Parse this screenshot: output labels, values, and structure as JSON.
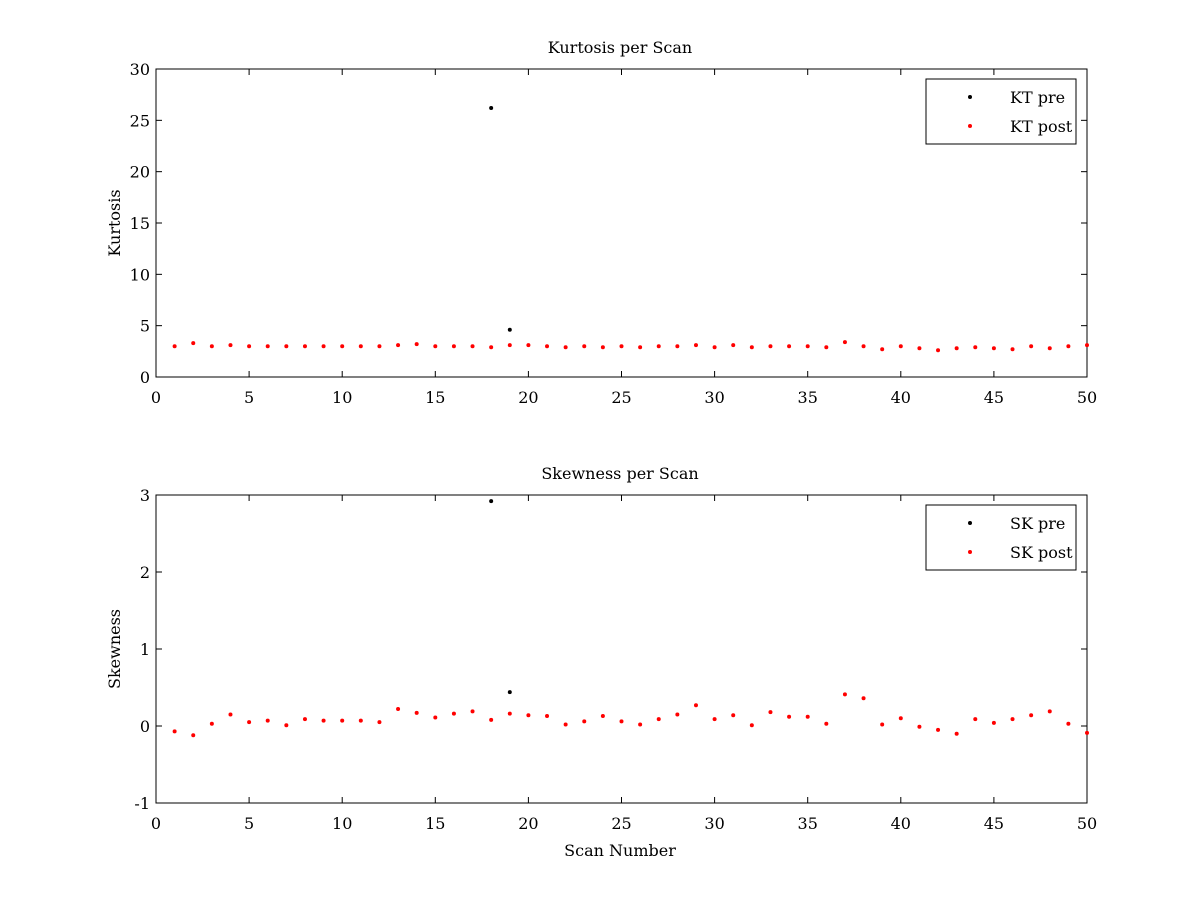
{
  "chart_data": [
    {
      "type": "scatter",
      "title": "Kurtosis per Scan",
      "xlabel": "",
      "ylabel": "Kurtosis",
      "xlim": [
        0,
        50
      ],
      "ylim": [
        0,
        30
      ],
      "xticks": [
        0,
        5,
        10,
        15,
        20,
        25,
        30,
        35,
        40,
        45,
        50
      ],
      "yticks": [
        0,
        5,
        10,
        15,
        20,
        25,
        30
      ],
      "grid": false,
      "legend_position": "top-right",
      "series": [
        {
          "name": "KT pre",
          "color": "#000000",
          "x": [
            18,
            19
          ],
          "y": [
            26.2,
            4.6
          ]
        },
        {
          "name": "KT post",
          "color": "#ff0000",
          "x": [
            1,
            2,
            3,
            4,
            5,
            6,
            7,
            8,
            9,
            10,
            11,
            12,
            13,
            14,
            15,
            16,
            17,
            18,
            19,
            20,
            21,
            22,
            23,
            24,
            25,
            26,
            27,
            28,
            29,
            30,
            31,
            32,
            33,
            34,
            35,
            36,
            37,
            38,
            39,
            40,
            41,
            42,
            43,
            44,
            45,
            46,
            47,
            48,
            49,
            50
          ],
          "y": [
            3.0,
            3.3,
            3.0,
            3.1,
            3.0,
            3.0,
            3.0,
            3.0,
            3.0,
            3.0,
            3.0,
            3.0,
            3.1,
            3.2,
            3.0,
            3.0,
            3.0,
            2.9,
            3.1,
            3.1,
            3.0,
            2.9,
            3.0,
            2.9,
            3.0,
            2.9,
            3.0,
            3.0,
            3.1,
            2.9,
            3.1,
            2.9,
            3.0,
            3.0,
            3.0,
            2.9,
            3.4,
            3.0,
            2.7,
            3.0,
            2.8,
            2.6,
            2.8,
            2.9,
            2.8,
            2.7,
            3.0,
            2.8,
            3.0,
            3.1
          ]
        }
      ]
    },
    {
      "type": "scatter",
      "title": "Skewness per Scan",
      "xlabel": "Scan Number",
      "ylabel": "Skewness",
      "xlim": [
        0,
        50
      ],
      "ylim": [
        -1,
        3
      ],
      "xticks": [
        0,
        5,
        10,
        15,
        20,
        25,
        30,
        35,
        40,
        45,
        50
      ],
      "yticks": [
        -1,
        0,
        1,
        2,
        3
      ],
      "grid": false,
      "legend_position": "top-right",
      "series": [
        {
          "name": "SK pre",
          "color": "#000000",
          "x": [
            18,
            19
          ],
          "y": [
            2.92,
            0.44
          ]
        },
        {
          "name": "SK post",
          "color": "#ff0000",
          "x": [
            1,
            2,
            3,
            4,
            5,
            6,
            7,
            8,
            9,
            10,
            11,
            12,
            13,
            14,
            15,
            16,
            17,
            18,
            19,
            20,
            21,
            22,
            23,
            24,
            25,
            26,
            27,
            28,
            29,
            30,
            31,
            32,
            33,
            34,
            35,
            36,
            37,
            38,
            39,
            40,
            41,
            42,
            43,
            44,
            45,
            46,
            47,
            48,
            49,
            50
          ],
          "y": [
            -0.07,
            -0.12,
            0.03,
            0.15,
            0.05,
            0.07,
            0.01,
            0.09,
            0.07,
            0.07,
            0.07,
            0.05,
            0.22,
            0.17,
            0.11,
            0.16,
            0.19,
            0.08,
            0.16,
            0.14,
            0.13,
            0.02,
            0.06,
            0.13,
            0.06,
            0.02,
            0.09,
            0.15,
            0.27,
            0.09,
            0.14,
            0.01,
            0.18,
            0.12,
            0.12,
            0.03,
            0.41,
            0.36,
            0.02,
            0.1,
            -0.01,
            -0.05,
            -0.1,
            0.09,
            0.04,
            0.09,
            0.14,
            0.19,
            0.03,
            -0.09
          ]
        }
      ]
    }
  ]
}
